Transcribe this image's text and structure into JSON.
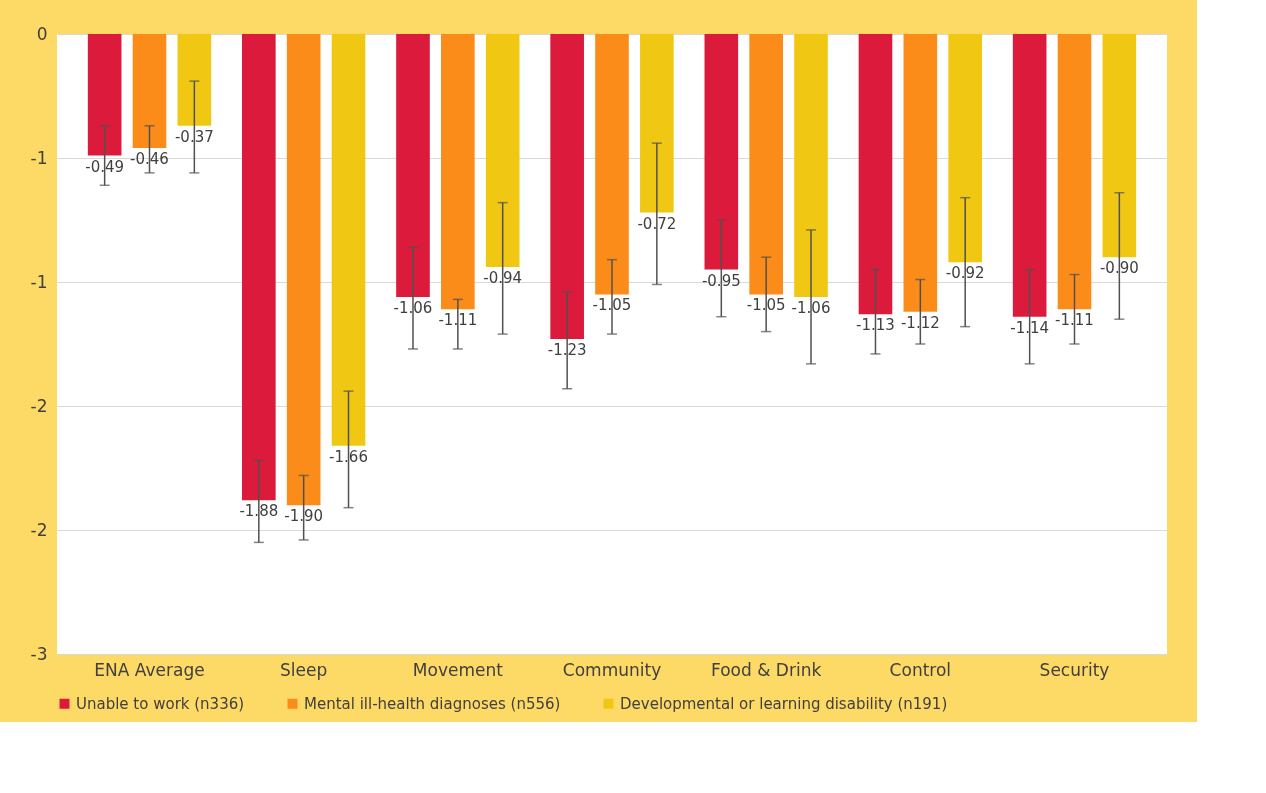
{
  "chart_data": {
    "type": "bar",
    "categories": [
      "ENA Average",
      "Sleep",
      "Movement",
      "Community",
      "Food & Drink",
      "Control",
      "Security"
    ],
    "series": [
      {
        "name": "Unable to work (n336)",
        "color": "#dc1a3c",
        "values": [
          -0.49,
          -1.88,
          -1.06,
          -1.23,
          -0.95,
          -1.13,
          -1.14
        ],
        "value_labels": [
          "-0.49",
          "-1.88",
          "-1.06",
          "-1.23",
          "-0.95",
          "-1.13",
          "-1.14"
        ],
        "errors": [
          [
            -0.61,
            -0.37
          ],
          [
            -2.05,
            -1.72
          ],
          [
            -1.27,
            -0.86
          ],
          [
            -1.43,
            -1.04
          ],
          [
            -1.14,
            -0.75
          ],
          [
            -1.29,
            -0.95
          ],
          [
            -1.33,
            -0.95
          ]
        ]
      },
      {
        "name": "Mental ill-health diagnoses (n556)",
        "color": "#fb8c1a",
        "values": [
          -0.46,
          -1.9,
          -1.11,
          -1.05,
          -1.05,
          -1.12,
          -1.11
        ],
        "value_labels": [
          "-0.46",
          "-1.90",
          "-1.11",
          "-1.05",
          "-1.05",
          "-1.12",
          "-1.11"
        ],
        "errors": [
          [
            -0.56,
            -0.37
          ],
          [
            -2.04,
            -1.78
          ],
          [
            -1.27,
            -1.07
          ],
          [
            -1.21,
            -0.91
          ],
          [
            -1.2,
            -0.9
          ],
          [
            -1.25,
            -0.99
          ],
          [
            -1.25,
            -0.97
          ]
        ]
      },
      {
        "name": "Developmental or learning disability (n191)",
        "color": "#f0c814",
        "values": [
          -0.37,
          -1.66,
          -0.94,
          -0.72,
          -1.06,
          -0.92,
          -0.9
        ],
        "value_labels": [
          "-0.37",
          "-1.66",
          "-0.94",
          "-0.72",
          "-1.06",
          "-0.92",
          "-0.90"
        ],
        "errors": [
          [
            -0.56,
            -0.19
          ],
          [
            -1.91,
            -1.44
          ],
          [
            -1.21,
            -0.68
          ],
          [
            -1.01,
            -0.44
          ],
          [
            -1.33,
            -0.79
          ],
          [
            -1.18,
            -0.66
          ],
          [
            -1.15,
            -0.64
          ]
        ]
      }
    ],
    "ylim": [
      -2.5,
      0
    ],
    "yticks": [
      0,
      {
        "value": -0.5,
        "label": "-1"
      },
      -1,
      {
        "value": -1.5,
        "label": "-2"
      },
      -2,
      {
        "value": -2.5,
        "label": "-3"
      }
    ],
    "grid": "y",
    "legend": "bottom"
  }
}
